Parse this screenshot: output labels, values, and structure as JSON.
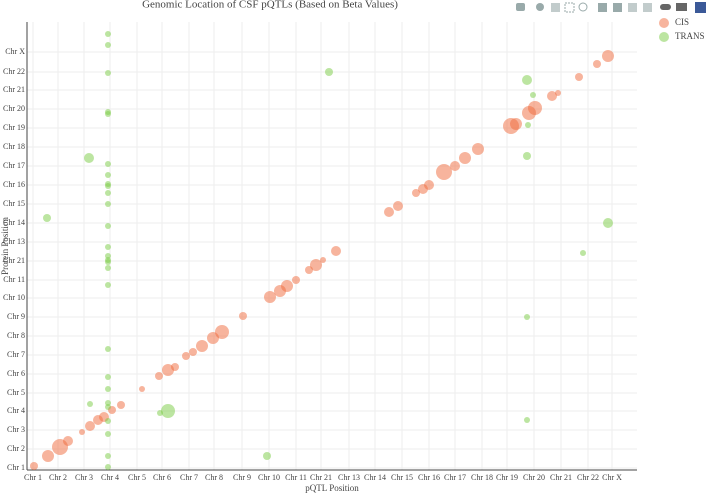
{
  "chart_data": {
    "type": "scatter",
    "title": "Genomic Location of CSF pQTLs (Based on Beta Values)",
    "x_label": "pQTL Position",
    "y_label": "Protein Position",
    "xlim": [
      0,
      610
    ],
    "ylim": [
      0,
      448
    ],
    "grid": true,
    "legend": "outside-right",
    "xticks": [
      {
        "value": 6,
        "label": "Chr 1"
      },
      {
        "value": 31,
        "label": "Chr 2"
      },
      {
        "value": 57,
        "label": "Chr 3"
      },
      {
        "value": 83,
        "label": "Chr 4"
      },
      {
        "value": 110,
        "label": "Chr 5"
      },
      {
        "value": 135,
        "label": "Chr 6"
      },
      {
        "value": 162,
        "label": "Chr 7"
      },
      {
        "value": 187,
        "label": "Chr 8"
      },
      {
        "value": 215,
        "label": "Chr 9"
      },
      {
        "value": 242,
        "label": "Chr 10"
      },
      {
        "value": 269,
        "label": "Chr 11"
      },
      {
        "value": 294,
        "label": "Chr 21"
      },
      {
        "value": 322,
        "label": "Chr 13"
      },
      {
        "value": 348,
        "label": "Chr 14"
      },
      {
        "value": 375,
        "label": "Chr 15"
      },
      {
        "value": 402,
        "label": "Chr 16"
      },
      {
        "value": 428,
        "label": "Chr 17"
      },
      {
        "value": 455,
        "label": "Chr 18"
      },
      {
        "value": 480,
        "label": "Chr 19"
      },
      {
        "value": 507,
        "label": "Chr 20"
      },
      {
        "value": 534,
        "label": "Chr 21"
      },
      {
        "value": 561,
        "label": "Chr 22"
      },
      {
        "value": 585,
        "label": "Chr X"
      }
    ],
    "yticks": [
      {
        "value": 2,
        "label": "Chr 1"
      },
      {
        "value": 21,
        "label": "Chr 2"
      },
      {
        "value": 40,
        "label": "Chr 3"
      },
      {
        "value": 59,
        "label": "Chr 4"
      },
      {
        "value": 77,
        "label": "Chr 5"
      },
      {
        "value": 96,
        "label": "Chr 6"
      },
      {
        "value": 115,
        "label": "Chr 7"
      },
      {
        "value": 134,
        "label": "Chr 8"
      },
      {
        "value": 153,
        "label": "Chr 9"
      },
      {
        "value": 172,
        "label": "Chr 10"
      },
      {
        "value": 190,
        "label": "Chr 11"
      },
      {
        "value": 209,
        "label": "Chr 21"
      },
      {
        "value": 228,
        "label": "Chr 13"
      },
      {
        "value": 247,
        "label": "Chr 14"
      },
      {
        "value": 266,
        "label": "Chr 15"
      },
      {
        "value": 285,
        "label": "Chr 16"
      },
      {
        "value": 304,
        "label": "Chr 17"
      },
      {
        "value": 323,
        "label": "Chr 18"
      },
      {
        "value": 342,
        "label": "Chr 19"
      },
      {
        "value": 361,
        "label": "Chr 20"
      },
      {
        "value": 380,
        "label": "Chr 21"
      },
      {
        "value": 398,
        "label": "Chr 22"
      },
      {
        "value": 418,
        "label": "Chr X"
      }
    ],
    "series": [
      {
        "name": "CIS",
        "color": "#f06a3c",
        "x": [
          7,
          21,
          33,
          41,
          55,
          63,
          71,
          77,
          85,
          94,
          115,
          132,
          141,
          148,
          159,
          166,
          175,
          186,
          195,
          216,
          243,
          253,
          260,
          269,
          282,
          289,
          296,
          309,
          362,
          371,
          389,
          396,
          402,
          417,
          428,
          438,
          451,
          484,
          489,
          502,
          508,
          525,
          531,
          552,
          570,
          581
        ],
        "values": [
          4,
          14,
          23,
          29,
          38,
          44,
          50,
          53,
          60,
          65,
          81,
          94,
          100,
          103,
          114,
          118,
          124,
          132,
          138,
          154,
          173,
          179,
          184,
          190,
          200,
          205,
          210,
          219,
          258,
          264,
          277,
          281,
          285,
          298,
          304,
          312,
          321,
          344,
          346,
          357,
          362,
          374,
          377,
          393,
          406,
          414
        ],
        "sizes": [
          4,
          6,
          8,
          5,
          3,
          5,
          5,
          5,
          4,
          4,
          3,
          4,
          6,
          4,
          4,
          4,
          6,
          6,
          7,
          4,
          6,
          6,
          6,
          4,
          4,
          6,
          3,
          5,
          5,
          5,
          4,
          5,
          5,
          8,
          5,
          6,
          6,
          8,
          6,
          7,
          7,
          5,
          3,
          4,
          4,
          6
        ]
      },
      {
        "name": "TRANS",
        "color": "#7acc44",
        "x": [
          20,
          81,
          81,
          81,
          81,
          81,
          62,
          81,
          81,
          81,
          81,
          81,
          81,
          81,
          81,
          81,
          81,
          81,
          81,
          81,
          81,
          81,
          81,
          81,
          81,
          63,
          81,
          81,
          81,
          81,
          133,
          141,
          240,
          302,
          500,
          506,
          501,
          500,
          581,
          556,
          500,
          500
        ],
        "values": [
          252,
          436,
          425,
          397,
          358,
          356,
          312,
          306,
          295,
          286,
          284,
          277,
          266,
          244,
          223,
          214,
          210,
          208,
          202,
          185,
          121,
          93,
          81,
          67,
          63,
          66,
          49,
          36,
          14,
          3,
          57,
          59,
          14,
          398,
          390,
          375,
          345,
          314,
          247,
          217,
          153,
          50
        ],
        "sizes": [
          4,
          3,
          3,
          3,
          3,
          3,
          5,
          3,
          3,
          3,
          3,
          3,
          3,
          3,
          3,
          3,
          3,
          3,
          3,
          3,
          3,
          3,
          3,
          3,
          3,
          3,
          3,
          3,
          3,
          3,
          3,
          7,
          4,
          4,
          5,
          3,
          3,
          4,
          5,
          3,
          3,
          3
        ]
      }
    ]
  }
}
